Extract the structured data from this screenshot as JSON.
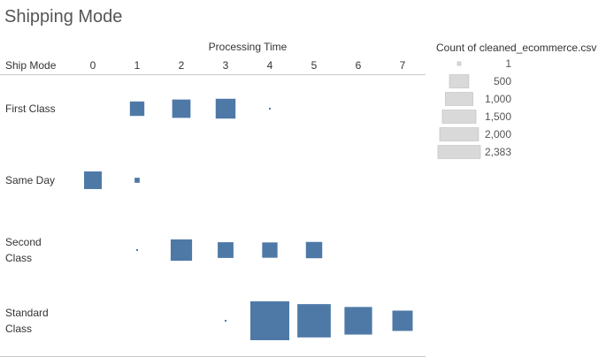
{
  "title": "Shipping Mode",
  "chart_data": {
    "type": "heatmap",
    "mark": "square",
    "x_title": "Processing Time",
    "row_header": "Ship Mode",
    "x_categories": [
      "0",
      "1",
      "2",
      "3",
      "4",
      "5",
      "6",
      "7"
    ],
    "rows": [
      "First Class",
      "Same Day",
      "Second Class",
      "Standard Class"
    ],
    "size_measure": "Count of cleaned_ecommerce.csv",
    "color": "#4e79a7",
    "cells": [
      {
        "row": "First Class",
        "x": "1",
        "value": 330
      },
      {
        "row": "First Class",
        "x": "2",
        "value": 530
      },
      {
        "row": "First Class",
        "x": "3",
        "value": 620
      },
      {
        "row": "First Class",
        "x": "4",
        "value": 2
      },
      {
        "row": "Same Day",
        "x": "0",
        "value": 490
      },
      {
        "row": "Same Day",
        "x": "1",
        "value": 40
      },
      {
        "row": "Second Class",
        "x": "1",
        "value": 2
      },
      {
        "row": "Second Class",
        "x": "2",
        "value": 720
      },
      {
        "row": "Second Class",
        "x": "3",
        "value": 390
      },
      {
        "row": "Second Class",
        "x": "4",
        "value": 370
      },
      {
        "row": "Second Class",
        "x": "5",
        "value": 420
      },
      {
        "row": "Standard Class",
        "x": "3",
        "value": 3
      },
      {
        "row": "Standard Class",
        "x": "4",
        "value": 2383
      },
      {
        "row": "Standard Class",
        "x": "5",
        "value": 1750
      },
      {
        "row": "Standard Class",
        "x": "6",
        "value": 1200
      },
      {
        "row": "Standard Class",
        "x": "7",
        "value": 650
      }
    ],
    "legend": {
      "title": "Count of cleaned_ecommerce.csv",
      "placement": "right",
      "items": [
        {
          "value": 1,
          "label": "1"
        },
        {
          "value": 500,
          "label": "500"
        },
        {
          "value": 1000,
          "label": "1,000"
        },
        {
          "value": 1500,
          "label": "1,500"
        },
        {
          "value": 2000,
          "label": "2,000"
        },
        {
          "value": 2383,
          "label": "2,383"
        }
      ],
      "swatch_color": "#d9d9d9"
    }
  }
}
